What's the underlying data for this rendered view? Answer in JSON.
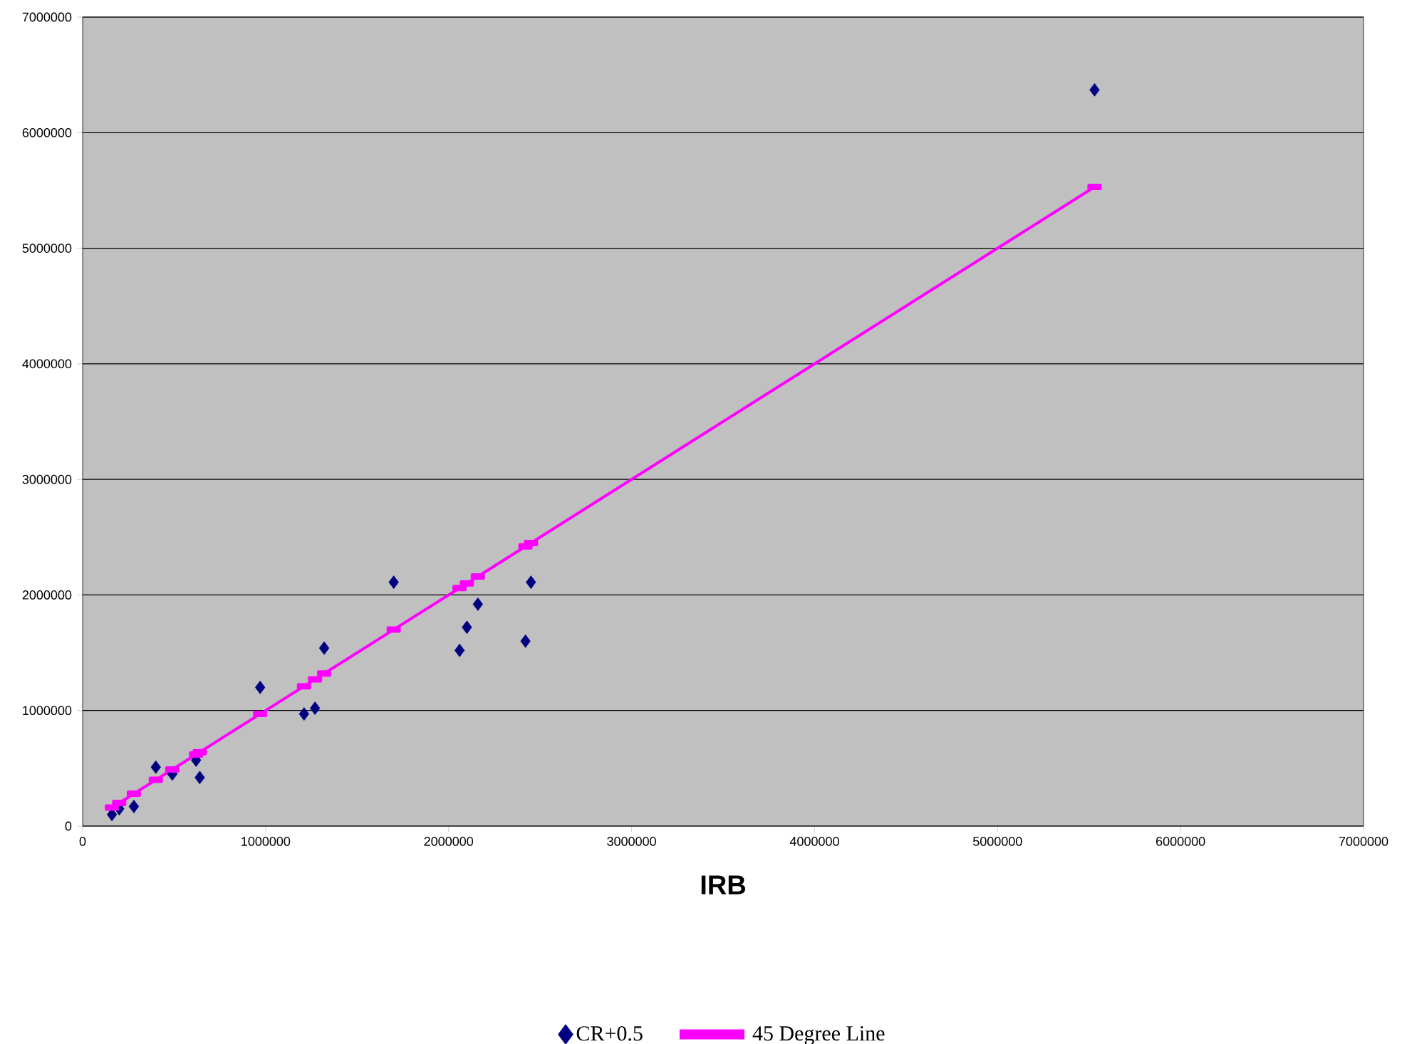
{
  "chart_data": {
    "type": "scatter",
    "xlabel": "IRB",
    "x": [
      160000,
      200000,
      280000,
      400000,
      490000,
      620000,
      640000,
      970000,
      1210000,
      1270000,
      1320000,
      1700000,
      2060000,
      2100000,
      2160000,
      2420000,
      2450000,
      5530000
    ],
    "series": [
      {
        "name": "CR+0.5",
        "color": "#000080",
        "marker": "diamond",
        "values": [
          100000,
          150000,
          170000,
          510000,
          450000,
          570000,
          420000,
          1200000,
          970000,
          1020000,
          1540000,
          2110000,
          1520000,
          1720000,
          1920000,
          1600000,
          2110000,
          6370000
        ]
      },
      {
        "name": "45 Degree Line",
        "type": "line",
        "color": "#ff00ff",
        "marker": "square",
        "line_style": "solid",
        "values": [
          160000,
          200000,
          280000,
          400000,
          490000,
          620000,
          640000,
          970000,
          1210000,
          1270000,
          1320000,
          1700000,
          2060000,
          2100000,
          2160000,
          2420000,
          2450000,
          5530000
        ]
      }
    ],
    "xlim": [
      0,
      7000000
    ],
    "ylim": [
      0,
      7000000
    ],
    "xticks": [
      0,
      1000000,
      2000000,
      3000000,
      4000000,
      5000000,
      6000000,
      7000000
    ],
    "yticks": [
      0,
      1000000,
      2000000,
      3000000,
      4000000,
      5000000,
      6000000,
      7000000
    ],
    "grid": "y",
    "legend": "bottom"
  }
}
